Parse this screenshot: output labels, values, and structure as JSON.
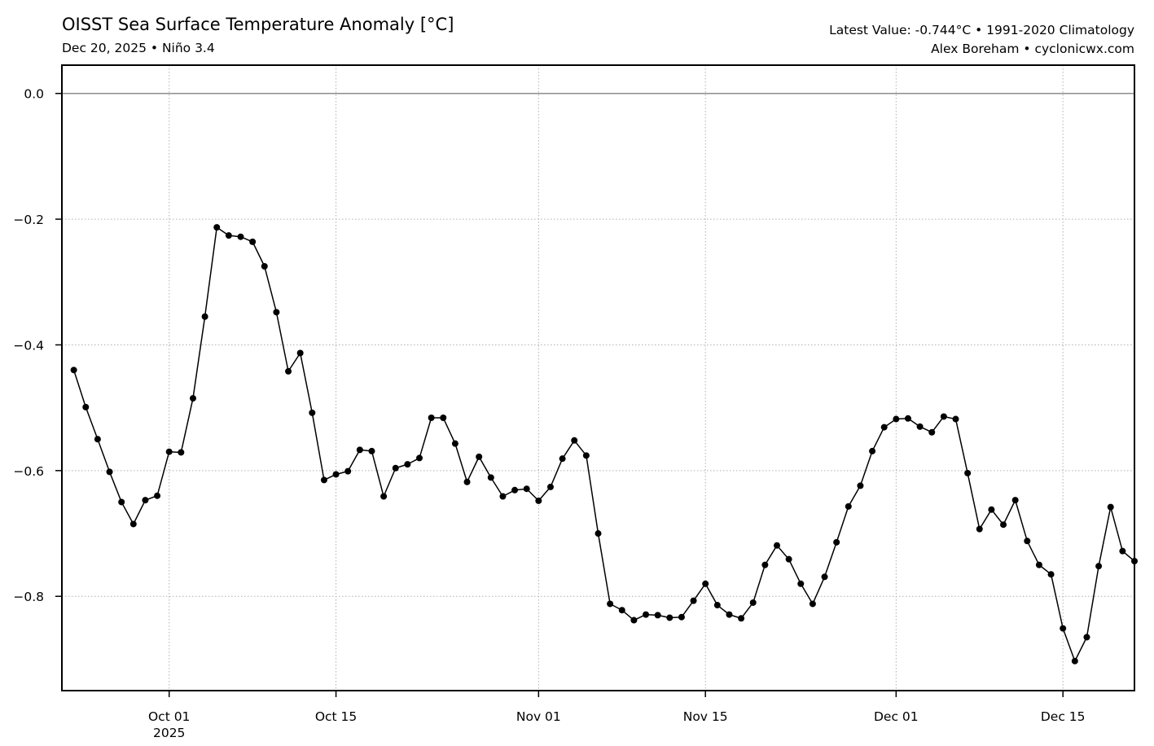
{
  "header": {
    "title": "OISST Sea Surface Temperature Anomaly [°C]",
    "subtitle": "Dec 20, 2025 • Niño 3.4",
    "info_line1": "Latest Value: -0.744°C • 1991-2020 Climatology",
    "info_line2": "Alex Boreham • cyclonicwx.com"
  },
  "chart_data": {
    "type": "line",
    "title": "OISST Sea Surface Temperature Anomaly [°C]",
    "xlabel": "",
    "ylabel": "",
    "x_start": "2025-09-23",
    "x_end": "2025-12-20",
    "xlim": [
      "2025-09-22",
      "2025-12-21"
    ],
    "ylim": [
      -0.95,
      0.045
    ],
    "grid": true,
    "zero_line": true,
    "line_color": "#000000",
    "marker": "circle",
    "y_ticks": [
      {
        "value": 0.0,
        "label": "0.0"
      },
      {
        "value": -0.2,
        "label": "−0.2"
      },
      {
        "value": -0.4,
        "label": "−0.4"
      },
      {
        "value": -0.6,
        "label": "−0.6"
      },
      {
        "value": -0.8,
        "label": "−0.8"
      }
    ],
    "x_ticks": [
      {
        "date": "2025-10-01",
        "label": "Oct 01",
        "sublabel": "2025"
      },
      {
        "date": "2025-10-15",
        "label": "Oct 15",
        "sublabel": ""
      },
      {
        "date": "2025-11-01",
        "label": "Nov 01",
        "sublabel": ""
      },
      {
        "date": "2025-11-15",
        "label": "Nov 15",
        "sublabel": ""
      },
      {
        "date": "2025-12-01",
        "label": "Dec 01",
        "sublabel": ""
      },
      {
        "date": "2025-12-15",
        "label": "Dec 15",
        "sublabel": ""
      }
    ],
    "values": [
      -0.44,
      -0.499,
      -0.55,
      -0.602,
      -0.65,
      -0.685,
      -0.647,
      -0.64,
      -0.57,
      -0.571,
      -0.485,
      -0.355,
      -0.213,
      -0.226,
      -0.228,
      -0.236,
      -0.275,
      -0.348,
      -0.442,
      -0.413,
      -0.508,
      -0.615,
      -0.606,
      -0.601,
      -0.567,
      -0.569,
      -0.641,
      -0.596,
      -0.59,
      -0.58,
      -0.516,
      -0.516,
      -0.557,
      -0.618,
      -0.578,
      -0.611,
      -0.641,
      -0.631,
      -0.629,
      -0.648,
      -0.626,
      -0.581,
      -0.552,
      -0.576,
      -0.7,
      -0.812,
      -0.822,
      -0.838,
      -0.829,
      -0.83,
      -0.834,
      -0.833,
      -0.807,
      -0.78,
      -0.814,
      -0.829,
      -0.835,
      -0.81,
      -0.75,
      -0.719,
      -0.741,
      -0.78,
      -0.812,
      -0.769,
      -0.714,
      -0.657,
      -0.624,
      -0.569,
      -0.531,
      -0.518,
      -0.517,
      -0.53,
      -0.539,
      -0.514,
      -0.518,
      -0.604,
      -0.693,
      -0.662,
      -0.686,
      -0.647,
      -0.712,
      -0.75,
      -0.765,
      -0.851,
      -0.903,
      -0.865,
      -0.752,
      -0.658,
      -0.728,
      -0.744
    ]
  }
}
